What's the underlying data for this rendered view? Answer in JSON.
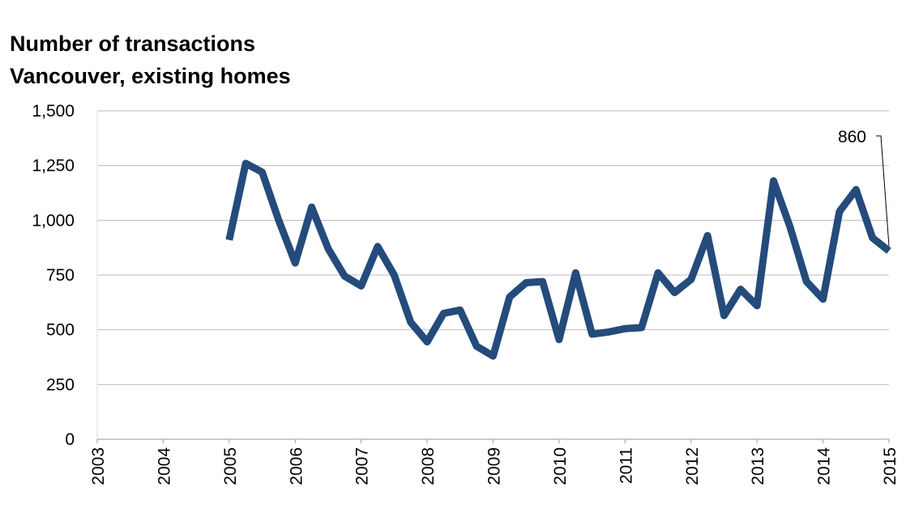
{
  "chart_data": {
    "type": "line",
    "title": "Number of transactions",
    "subtitle": "Vancouver, existing homes",
    "x": [
      2005,
      2005.25,
      2005.5,
      2005.75,
      2006,
      2006.25,
      2006.5,
      2006.75,
      2007,
      2007.25,
      2007.5,
      2007.75,
      2008,
      2008.25,
      2008.5,
      2008.75,
      2009,
      2009.25,
      2009.5,
      2009.75,
      2010,
      2010.25,
      2010.5,
      2010.75,
      2011,
      2011.25,
      2011.5,
      2011.75,
      2012,
      2012.25,
      2012.5,
      2012.75,
      2013,
      2013.25,
      2013.5,
      2013.75,
      2014,
      2014.25,
      2014.5,
      2014.75,
      2015
    ],
    "values": [
      910,
      1260,
      1220,
      1000,
      805,
      1060,
      870,
      745,
      700,
      880,
      750,
      535,
      445,
      575,
      590,
      425,
      380,
      650,
      715,
      720,
      455,
      760,
      480,
      490,
      505,
      510,
      760,
      670,
      730,
      930,
      565,
      685,
      610,
      1180,
      970,
      720,
      640,
      1040,
      1140,
      920,
      860
    ],
    "color": "#244b7b",
    "xlim": [
      2003,
      2015
    ],
    "xticks": [
      2003,
      2004,
      2005,
      2006,
      2007,
      2008,
      2009,
      2010,
      2011,
      2012,
      2013,
      2014,
      2015
    ],
    "ylim": [
      0,
      1500
    ],
    "yticks": [
      0,
      250,
      500,
      750,
      {
        "value": 1000,
        "label": "1,000"
      },
      {
        "value": 1250,
        "label": "1,250"
      },
      {
        "value": 1500,
        "label": "1,500"
      }
    ],
    "grid": true,
    "annotation": 860
  }
}
